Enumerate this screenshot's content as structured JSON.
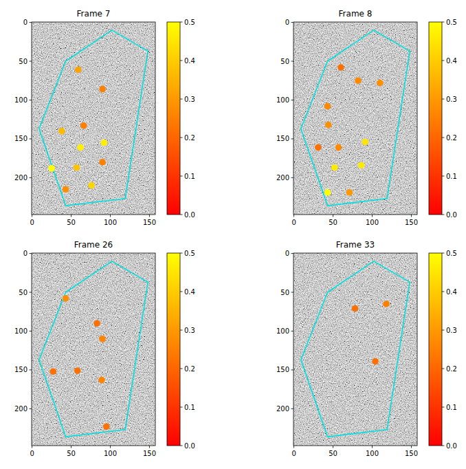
{
  "chart_data": [
    {
      "type": "scatter",
      "title": "Frame 7",
      "x": [
        59,
        90,
        66,
        38,
        62,
        92,
        25,
        57,
        90,
        43,
        76
      ],
      "y": [
        61,
        86,
        133,
        140,
        161,
        155,
        188,
        187,
        180,
        215,
        210
      ],
      "values": [
        0.32,
        0.25,
        0.25,
        0.37,
        0.47,
        0.47,
        0.5,
        0.38,
        0.25,
        0.28,
        0.42
      ],
      "region": {
        "x": [
          43,
          102,
          148,
          119,
          43,
          9
        ],
        "y": [
          50,
          10,
          37,
          227,
          236,
          137
        ]
      },
      "xlim": [
        -0.5,
        157.5
      ],
      "ylim": [
        247.5,
        -0.5
      ],
      "xticks": [
        0,
        50,
        100,
        150
      ],
      "yticks": [
        0,
        50,
        100,
        150,
        200
      ],
      "colorbar_range": [
        0,
        0.5
      ],
      "colorbar_ticks": [
        {
          "value": 0,
          "label": "0.0"
        },
        0.1,
        0.2,
        0.3,
        0.4,
        0.5
      ]
    },
    {
      "type": "scatter",
      "title": "Frame 8",
      "x": [
        60,
        82,
        110,
        43,
        44,
        31,
        57,
        91,
        52,
        86,
        43,
        71
      ],
      "y": [
        58,
        75,
        78,
        108,
        132,
        161,
        161,
        154,
        187,
        184,
        219,
        219
      ],
      "values": [
        0.22,
        0.27,
        0.28,
        0.27,
        0.28,
        0.22,
        0.27,
        0.45,
        0.46,
        0.46,
        0.5,
        0.3
      ],
      "region": {
        "x": [
          43,
          102,
          148,
          119,
          43,
          9
        ],
        "y": [
          50,
          10,
          37,
          227,
          236,
          137
        ]
      },
      "xlim": [
        -0.5,
        157.5
      ],
      "ylim": [
        247.5,
        -0.5
      ],
      "xticks": [
        0,
        50,
        100,
        150
      ],
      "yticks": [
        0,
        50,
        100,
        150,
        200
      ],
      "colorbar_range": [
        0,
        0.5
      ],
      "colorbar_ticks": [
        {
          "value": 0,
          "label": "0.0"
        },
        0.1,
        0.2,
        0.3,
        0.4,
        0.5
      ]
    },
    {
      "type": "scatter",
      "title": "Frame 26",
      "x": [
        43,
        83,
        90,
        27,
        58,
        89,
        95
      ],
      "y": [
        58,
        90,
        110,
        152,
        151,
        163,
        223
      ],
      "values": [
        0.28,
        0.22,
        0.26,
        0.22,
        0.22,
        0.26,
        0.22
      ],
      "region": {
        "x": [
          43,
          102,
          148,
          119,
          43,
          9
        ],
        "y": [
          50,
          10,
          37,
          227,
          236,
          137
        ]
      },
      "xlim": [
        -0.5,
        157.5
      ],
      "ylim": [
        247.5,
        -0.5
      ],
      "xticks": [
        0,
        50,
        100,
        150
      ],
      "yticks": [
        0,
        50,
        100,
        150,
        200
      ],
      "colorbar_range": [
        0,
        0.5
      ],
      "colorbar_ticks": [
        {
          "value": 0,
          "label": "0.0"
        },
        0.1,
        0.2,
        0.3,
        0.4,
        0.5
      ]
    },
    {
      "type": "scatter",
      "title": "Frame 33",
      "x": [
        78,
        118,
        104
      ],
      "y": [
        71,
        65,
        139
      ],
      "values": [
        0.22,
        0.25,
        0.22
      ],
      "region": {
        "x": [
          43,
          102,
          148,
          119,
          43,
          9
        ],
        "y": [
          50,
          10,
          37,
          227,
          236,
          137
        ]
      },
      "xlim": [
        -0.5,
        157.5
      ],
      "ylim": [
        247.5,
        -0.5
      ],
      "xticks": [
        0,
        50,
        100,
        150
      ],
      "yticks": [
        0,
        50,
        100,
        150,
        200
      ],
      "colorbar_range": [
        0,
        0.5
      ],
      "colorbar_ticks": [
        {
          "value": 0,
          "label": "0.0"
        },
        0.1,
        0.2,
        0.3,
        0.4,
        0.5
      ]
    }
  ]
}
